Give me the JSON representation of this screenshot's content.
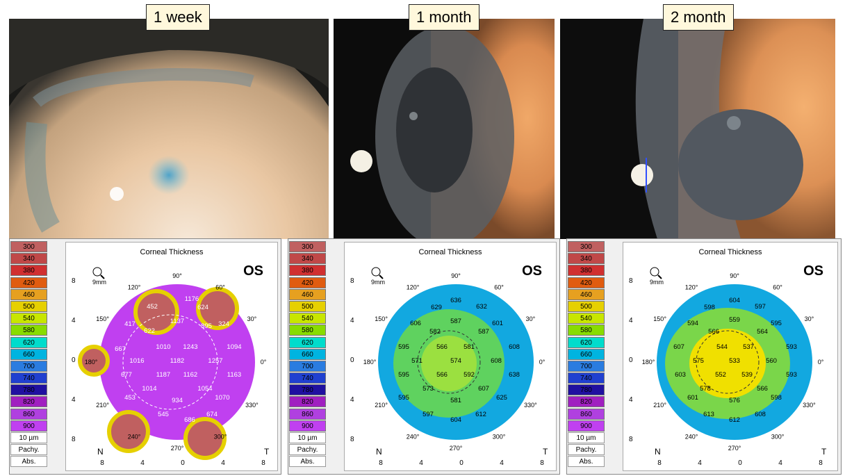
{
  "timepoints": [
    {
      "label": "1 week"
    },
    {
      "label": "1 month"
    },
    {
      "label": "2 month"
    }
  ],
  "legend": {
    "values": [
      "300",
      "340",
      "380",
      "420",
      "460",
      "500",
      "540",
      "580",
      "620",
      "660",
      "700",
      "740",
      "780",
      "820",
      "860",
      "900"
    ],
    "colors": [
      "#c06060",
      "#c04848",
      "#d03030",
      "#e05c10",
      "#e6a020",
      "#e6d000",
      "#c8e600",
      "#88dc00",
      "#00dccc",
      "#00b4e0",
      "#2a7ce0",
      "#2040d0",
      "#2010a0",
      "#a020c0",
      "#b040e0",
      "#c040f0"
    ],
    "step": "10 µm",
    "pachy": "Pachy.",
    "abs": "Abs."
  },
  "map": {
    "title": "Corneal Thickness",
    "eye": "OS",
    "zoom": "9mm",
    "angle_labels": [
      "90°",
      "60°",
      "30°",
      "0°",
      "330°",
      "300°",
      "270°",
      "240°",
      "210°",
      "180°",
      "150°",
      "120°"
    ],
    "y_ticks": [
      "8",
      "4",
      "0",
      "4",
      "8"
    ],
    "x_ticks": [
      "8",
      "4",
      "0",
      "4",
      "8"
    ],
    "nasal": "N",
    "temporal": "T"
  },
  "maps": [
    {
      "name": "1 week",
      "values": [
        "1176",
        "452",
        "624",
        "1137",
        "895",
        "417",
        "622",
        "324",
        "667",
        "1010",
        "1243",
        "1094",
        "1016",
        "1182",
        "1257",
        "677",
        "1187",
        "1162",
        "1163",
        "1014",
        "1054",
        "1070",
        "453",
        "934",
        "545",
        "686",
        "674"
      ]
    },
    {
      "name": "1 month",
      "values": [
        "636",
        "629",
        "632",
        "606",
        "587",
        "601",
        "582",
        "587",
        "566",
        "581",
        "608",
        "595",
        "571",
        "574",
        "608",
        "595",
        "566",
        "592",
        "638",
        "573",
        "607",
        "595",
        "581",
        "625",
        "597",
        "604",
        "612"
      ]
    },
    {
      "name": "2 month",
      "values": [
        "604",
        "598",
        "597",
        "559",
        "594",
        "566",
        "564",
        "595",
        "607",
        "544",
        "537",
        "593",
        "575",
        "533",
        "560",
        "603",
        "552",
        "539",
        "593",
        "578",
        "566",
        "601",
        "576",
        "598",
        "613",
        "608",
        "612"
      ]
    }
  ]
}
